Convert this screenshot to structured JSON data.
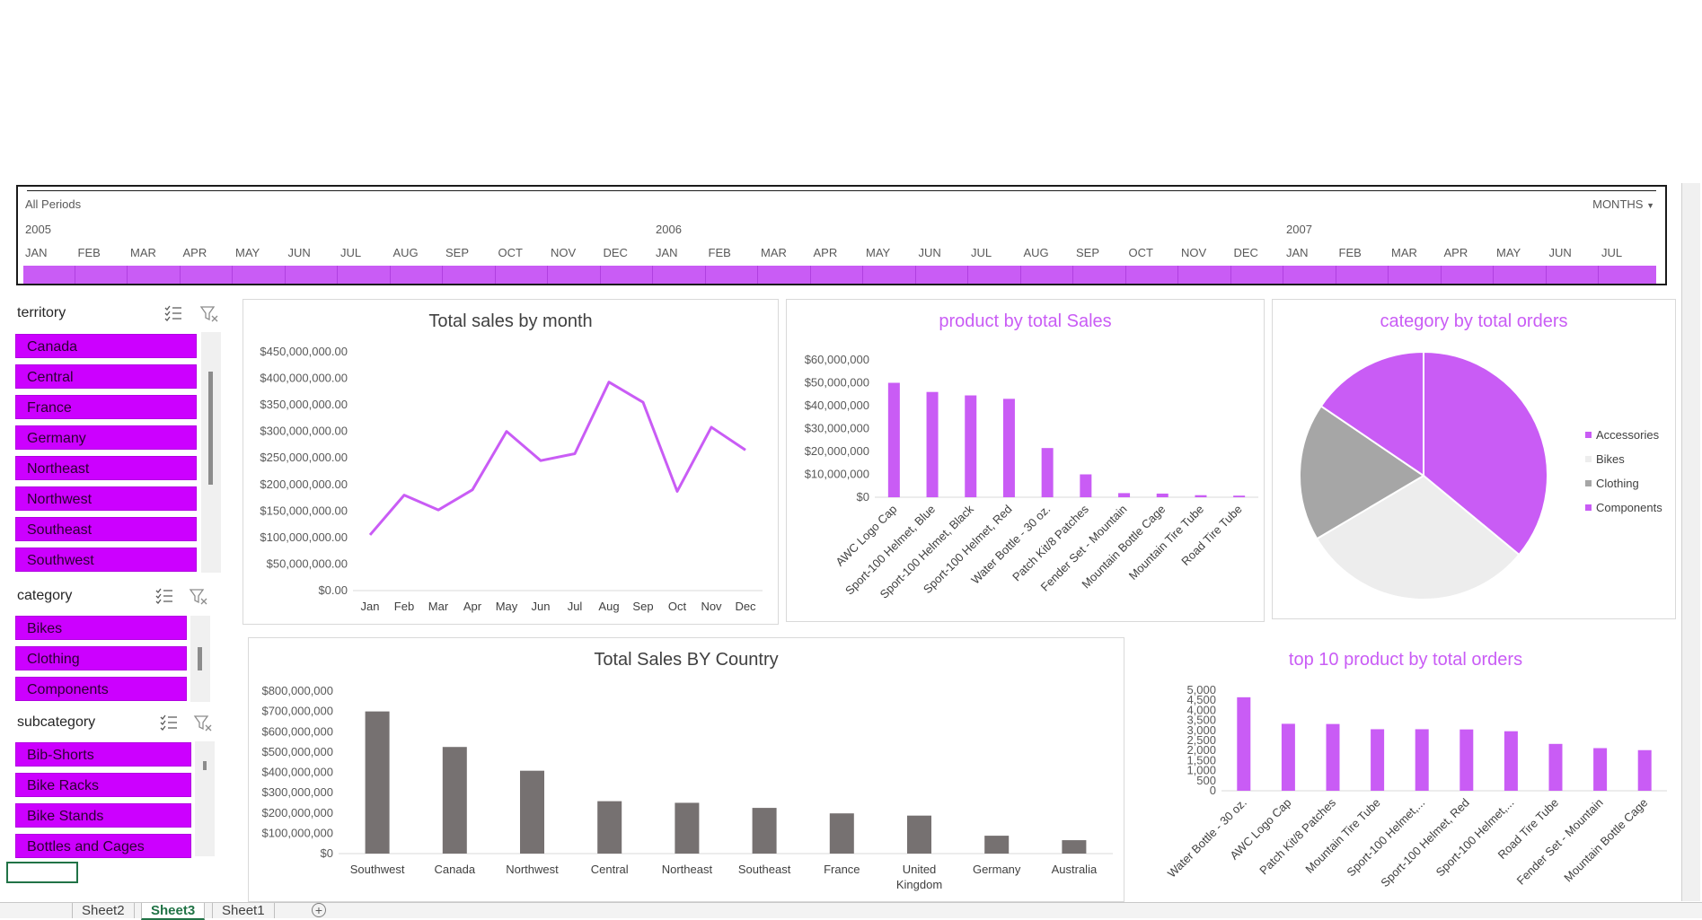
{
  "timeline": {
    "header": "All Periods",
    "dropdown": "MONTHS",
    "years": [
      "2005",
      "2006",
      "2007"
    ],
    "months": [
      "JAN",
      "FEB",
      "MAR",
      "APR",
      "MAY",
      "JUN",
      "JUL",
      "AUG",
      "SEP",
      "OCT",
      "NOV",
      "DEC",
      "JAN",
      "FEB",
      "MAR",
      "APR",
      "MAY",
      "JUN",
      "JUL",
      "AUG",
      "SEP",
      "OCT",
      "NOV",
      "DEC",
      "JAN",
      "FEB",
      "MAR",
      "APR",
      "MAY",
      "JUN",
      "JUL"
    ]
  },
  "slicers": {
    "territory": {
      "title": "territory",
      "items": [
        "Canada",
        "Central",
        "France",
        "Germany",
        "Northeast",
        "Northwest",
        "Southeast",
        "Southwest"
      ]
    },
    "category": {
      "title": "category",
      "items": [
        "Bikes",
        "Clothing",
        "Components"
      ]
    },
    "subcategory": {
      "title": "subcategory",
      "items": [
        "Bib-Shorts",
        "Bike Racks",
        "Bike Stands",
        "Bottles and Cages"
      ]
    }
  },
  "sheets": [
    "Sheet2",
    "Sheet3",
    "Sheet1"
  ],
  "active_sheet": "Sheet3",
  "colors": {
    "accent": "#c95cf5",
    "slicer": "#cc00ff",
    "gray_bar": "#767171",
    "pie_gray": "#a6a6a6",
    "pie_light": "#ededed"
  },
  "chart_data": [
    {
      "id": "sales_by_month",
      "type": "line",
      "title": "Total sales by month",
      "categories": [
        "Jan",
        "Feb",
        "Mar",
        "Apr",
        "May",
        "Jun",
        "Jul",
        "Aug",
        "Sep",
        "Oct",
        "Nov",
        "Dec"
      ],
      "values": [
        105000000,
        180000000,
        152000000,
        190000000,
        300000000,
        245000000,
        258000000,
        393000000,
        355000000,
        187000000,
        308000000,
        265000000
      ],
      "yticks": [
        "$0.00",
        "$50,000,000.00",
        "$100,000,000.00",
        "$150,000,000.00",
        "$200,000,000.00",
        "$250,000,000.00",
        "$300,000,000.00",
        "$350,000,000.00",
        "$400,000,000.00",
        "$450,000,000.00"
      ],
      "ylim": [
        0,
        450000000
      ]
    },
    {
      "id": "product_by_sales",
      "type": "bar",
      "title": "product by total Sales",
      "categories": [
        "AWC Logo Cap",
        "Sport-100 Helmet, Blue",
        "Sport-100 Helmet, Black",
        "Sport-100 Helmet, Red",
        "Water Bottle - 30 oz.",
        "Patch Kit/8 Patches",
        "Fender Set - Mountain",
        "Mountain Bottle Cage",
        "Mountain Tire Tube",
        "Road Tire Tube"
      ],
      "values": [
        50000000,
        46000000,
        44500000,
        43000000,
        21500000,
        10000000,
        1800000,
        1600000,
        900000,
        700000
      ],
      "yticks": [
        "$0",
        "$10,000,000",
        "$20,000,000",
        "$30,000,000",
        "$40,000,000",
        "$50,000,000",
        "$60,000,000"
      ],
      "ylim": [
        0,
        60000000
      ]
    },
    {
      "id": "category_by_orders",
      "type": "pie",
      "title": "category by total orders",
      "labels": [
        "Accessories",
        "Bikes",
        "Clothing",
        "Components"
      ],
      "values": [
        36,
        30.5,
        18,
        15.5
      ],
      "legend": "right"
    },
    {
      "id": "sales_by_country",
      "type": "bar",
      "title": "Total Sales BY Country",
      "categories": [
        "Southwest",
        "Canada",
        "Northwest",
        "Central",
        "Northeast",
        "Southeast",
        "France",
        "United Kingdom",
        "Germany",
        "Australia"
      ],
      "values": [
        700000000,
        525000000,
        408000000,
        258000000,
        250000000,
        225000000,
        198000000,
        187000000,
        88000000,
        66000000
      ],
      "yticks": [
        "$0",
        "$100,000,000",
        "$200,000,000",
        "$300,000,000",
        "$400,000,000",
        "$500,000,000",
        "$600,000,000",
        "$700,000,000",
        "$800,000,000"
      ],
      "ylim": [
        0,
        800000000
      ]
    },
    {
      "id": "top10_by_orders",
      "type": "bar",
      "title": "top 10 product by total orders",
      "categories": [
        "Water Bottle - 30 oz.",
        "AWC Logo Cap",
        "Patch Kit/8 Patches",
        "Mountain Tire Tube",
        "Sport-100 Helmet,...",
        "Sport-100 Helmet, Red",
        "Sport-100 Helmet,...",
        "Road Tire Tube",
        "Fender Set - Mountain",
        "Mountain Bottle Cage"
      ],
      "values": [
        4650,
        3330,
        3320,
        3060,
        3060,
        3050,
        2960,
        2330,
        2120,
        2020
      ],
      "yticks": [
        "0",
        "500",
        "1,000",
        "1,500",
        "2,000",
        "2,500",
        "3,000",
        "3,500",
        "4,000",
        "4,500",
        "5,000"
      ],
      "ylim": [
        0,
        5000
      ]
    }
  ]
}
